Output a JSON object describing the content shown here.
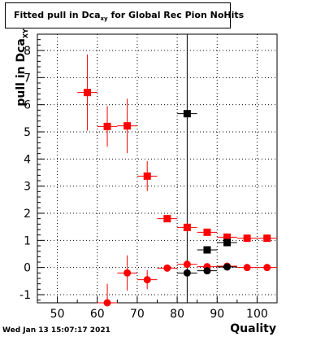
{
  "title": {
    "prefix": "Fitted pull in Dca",
    "sub": "xy",
    "suffix": " for Global Rec Pion NoHits"
  },
  "ylabel": {
    "main": "pull in Dca",
    "sub": "XY"
  },
  "xlabel": "Quality",
  "datestamp": "Wed Jan 13 15:07:17 2021",
  "colors": {
    "red": "#ff0000",
    "black": "#000000",
    "grid": "#000000"
  },
  "chart_data": {
    "type": "scatter",
    "xlim": [
      45,
      105
    ],
    "ylim": [
      -1.3,
      8.6
    ],
    "xticks": [
      50,
      60,
      70,
      80,
      90,
      100
    ],
    "yticks": [
      -1,
      0,
      1,
      2,
      3,
      4,
      5,
      6,
      7,
      8
    ],
    "grid": true,
    "vline_x": 82.5,
    "series": [
      {
        "color": "red",
        "marker": "square",
        "x": [
          57.5,
          62.5,
          67.5,
          72.5,
          77.5,
          82.5,
          87.5,
          92.5,
          97.5,
          102.5
        ],
        "y": [
          6.45,
          5.2,
          5.22,
          3.37,
          1.8,
          1.48,
          1.3,
          1.12,
          1.08,
          1.08
        ],
        "yerr": [
          1.4,
          0.75,
          1.0,
          0.55,
          0.1,
          0.15,
          0.1,
          0.08,
          0.07,
          0.07
        ],
        "xerr": 2.5
      },
      {
        "color": "red",
        "marker": "circle",
        "x": [
          62.5,
          67.5,
          72.5,
          77.5,
          82.5,
          87.5,
          92.5,
          97.5,
          102.5
        ],
        "y": [
          -1.3,
          -0.2,
          -0.45,
          -0.02,
          0.12,
          0.03,
          0.05,
          0.0,
          0.0
        ],
        "yerr": [
          0.7,
          0.65,
          0.35,
          0.08,
          0.1,
          0.07,
          0.06,
          0.05,
          0.05
        ],
        "xerr": 2.5
      },
      {
        "color": "black",
        "marker": "square",
        "x": [
          82.5,
          87.5,
          92.5
        ],
        "y": [
          5.67,
          0.65,
          0.92
        ],
        "yerr": [
          0.05,
          0.12,
          0.08
        ],
        "xerr": 2.5
      },
      {
        "color": "black",
        "marker": "circle",
        "x": [
          82.5,
          87.5,
          92.5
        ],
        "y": [
          -0.2,
          -0.12,
          0.02
        ],
        "yerr": [
          0.05,
          0.05,
          0.05
        ],
        "xerr": 2.5
      }
    ]
  }
}
